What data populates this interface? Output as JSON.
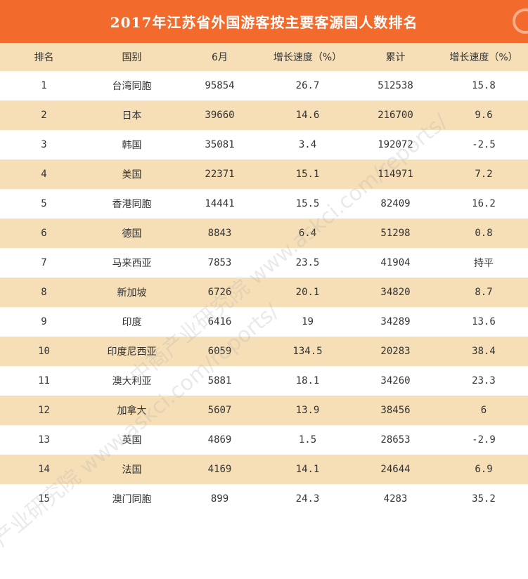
{
  "chart_data": {
    "type": "table",
    "title": "2017年江苏省外国游客按主要客源国人数排名",
    "columns": [
      "排名",
      "国别",
      "6月",
      "增长速度（%）",
      "累计",
      "增长速度（%）"
    ],
    "rows": [
      [
        "1",
        "台湾同胞",
        "95854",
        "26.7",
        "512538",
        "15.8"
      ],
      [
        "2",
        "日本",
        "39660",
        "14.6",
        "216700",
        "9.6"
      ],
      [
        "3",
        "韩国",
        "35081",
        "3.4",
        "192072",
        "-2.5"
      ],
      [
        "4",
        "美国",
        "22371",
        "15.1",
        "114971",
        "7.2"
      ],
      [
        "5",
        "香港同胞",
        "14441",
        "15.5",
        "82409",
        "16.2"
      ],
      [
        "6",
        "德国",
        "8843",
        "6.4",
        "51298",
        "0.8"
      ],
      [
        "7",
        "马来西亚",
        "7853",
        "23.5",
        "41904",
        "持平"
      ],
      [
        "8",
        "新加坡",
        "6726",
        "20.1",
        "34820",
        "8.7"
      ],
      [
        "9",
        "印度",
        "6416",
        "19",
        "34289",
        "13.6"
      ],
      [
        "10",
        "印度尼西亚",
        "6059",
        "134.5",
        "20283",
        "38.4"
      ],
      [
        "11",
        "澳大利亚",
        "5881",
        "18.1",
        "34260",
        "23.3"
      ],
      [
        "12",
        "加拿大",
        "5607",
        "13.9",
        "38456",
        "6"
      ],
      [
        "13",
        "英国",
        "4869",
        "1.5",
        "28653",
        "-2.9"
      ],
      [
        "14",
        "法国",
        "4169",
        "14.1",
        "24644",
        "6.9"
      ],
      [
        "15",
        "澳门同胞",
        "899",
        "24.3",
        "4283",
        "35.2"
      ]
    ]
  },
  "watermark": {
    "text": "中商产业研究院 www.askci.com/reports/"
  },
  "colors": {
    "title_bg": "#f26a2c",
    "band": "#f6dfb7",
    "text": "#333333"
  }
}
